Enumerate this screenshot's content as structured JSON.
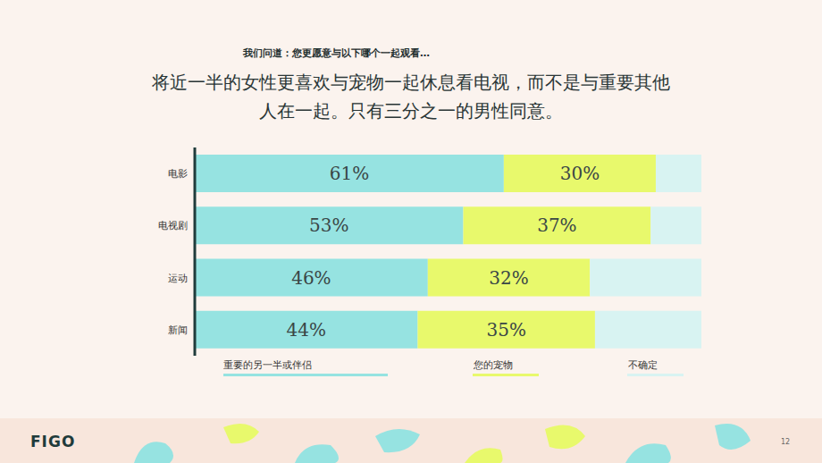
{
  "chart_data": {
    "type": "bar",
    "orientation": "horizontal",
    "stacked": true,
    "subtitle": "我们问道：您更愿意与以下哪个一起观看…",
    "title": "将近一半的女性更喜欢与宠物一起休息看电视，而不是与重要其他人在一起。只有三分之一的男性同意。",
    "categories": [
      "电影",
      "电视剧",
      "运动",
      "新闻"
    ],
    "xlim": [
      0,
      100
    ],
    "tick_labels": "y",
    "grid": false,
    "legend": "bottom",
    "series": [
      {
        "name": "重要的另一半或伴侣",
        "color": "#96e3e1",
        "values": [
          61,
          53,
          46,
          44
        ],
        "value_labels": [
          "61%",
          "53%",
          "46%",
          "44%"
        ],
        "data_labels": true
      },
      {
        "name": "您的宠物",
        "color": "#e8f96c",
        "values": [
          30,
          37,
          32,
          35
        ],
        "value_labels": [
          "30%",
          "37%",
          "32%",
          "35%"
        ],
        "data_labels": true
      },
      {
        "name": "不确定",
        "color": "#d8f3f2",
        "values": [
          9,
          10,
          22,
          21
        ],
        "data_labels": false
      }
    ],
    "logo": "FIGO",
    "page_number": "12"
  }
}
